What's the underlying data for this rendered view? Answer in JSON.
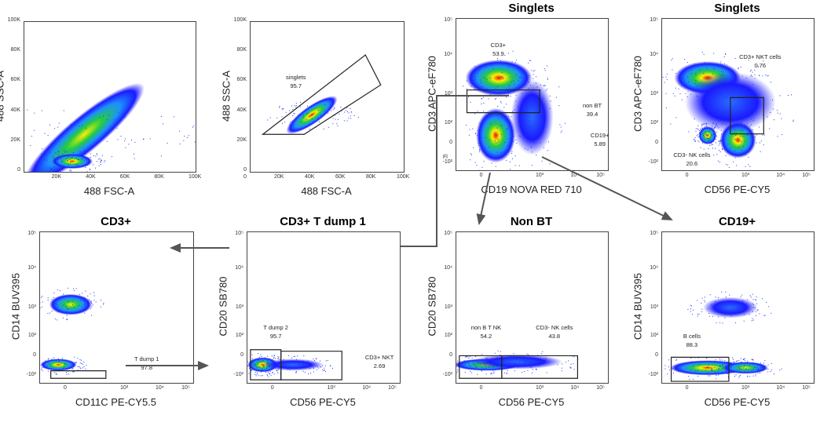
{
  "chart_data": [
    {
      "type": "scatter",
      "title": "",
      "xlabel": "488 FSC-A",
      "ylabel": "488 SSC-A",
      "xscale": "linear",
      "yscale": "linear",
      "xticks": [
        "20K",
        "40K",
        "60K",
        "80K",
        "100K"
      ],
      "yticks": [
        "0",
        "20K",
        "40K",
        "60K",
        "80K",
        "100K"
      ],
      "gates": []
    },
    {
      "type": "scatter",
      "title": "",
      "xlabel": "488 FSC-A",
      "ylabel": "488 SSC-A",
      "xscale": "linear",
      "yscale": "linear",
      "xticks": [
        "0",
        "20K",
        "40K",
        "60K",
        "80K",
        "100K"
      ],
      "yticks": [
        "0",
        "20K",
        "40K",
        "60K",
        "80K",
        "100K"
      ],
      "gates": [
        {
          "name": "singlets",
          "value": "95.7"
        }
      ]
    },
    {
      "type": "scatter",
      "title": "Singlets",
      "xlabel": "CD19 NOVA RED 710",
      "ylabel": "CD3 APC-eF780",
      "xscale": "biexponential",
      "yscale": "biexponential",
      "xticks": [
        "0",
        "10³",
        "10⁴",
        "10⁵"
      ],
      "yticks": [
        "-10²",
        "0",
        "10²",
        "10³",
        "10⁴",
        "10⁵"
      ],
      "gates": [
        {
          "name": "CD3+",
          "value": "53.9"
        },
        {
          "name": "non BT",
          "value": "39.4"
        },
        {
          "name": "CD19+",
          "value": "5.89"
        }
      ],
      "side_note": "Fl"
    },
    {
      "type": "scatter",
      "title": "Singlets",
      "xlabel": "CD56 PE-CY5",
      "ylabel": "CD3 APC-eF780",
      "xscale": "biexponential",
      "yscale": "biexponential",
      "xticks": [
        "0",
        "10³",
        "10⁴",
        "10⁵"
      ],
      "yticks": [
        "-10²",
        "0",
        "10²",
        "10³",
        "10⁴",
        "10⁵"
      ],
      "gates": [
        {
          "name": "CD3+ NKT cells",
          "value": "0.76"
        },
        {
          "name": "CD3- NK cells",
          "value": "20.6"
        }
      ]
    },
    {
      "type": "scatter",
      "title": "CD3+",
      "xlabel": "CD11C PE-CY5.5",
      "ylabel": "CD14 BUV395",
      "xscale": "biexponential",
      "yscale": "biexponential",
      "xticks": [
        "0",
        "10³",
        "10⁴",
        "10⁵"
      ],
      "yticks": [
        "-10²",
        "0",
        "10²",
        "10³",
        "10⁴",
        "10⁵"
      ],
      "gates": [
        {
          "name": "T dump 1",
          "value": "97.8"
        }
      ]
    },
    {
      "type": "scatter",
      "title": "CD3+ T dump 1",
      "xlabel": "CD56 PE-CY5",
      "ylabel": "CD20 SB780",
      "xscale": "biexponential",
      "yscale": "biexponential",
      "xticks": [
        "0",
        "10³",
        "10⁴",
        "10⁵"
      ],
      "yticks": [
        "-10²",
        "0",
        "10²",
        "10³",
        "10⁴",
        "10⁵"
      ],
      "gates": [
        {
          "name": "T dump 2",
          "value": "95.7"
        },
        {
          "name": "CD3+ NKT",
          "value": "2.69"
        }
      ]
    },
    {
      "type": "scatter",
      "title": "Non BT",
      "xlabel": "CD56 PE-CY5",
      "ylabel": "CD20 SB780",
      "xscale": "biexponential",
      "yscale": "biexponential",
      "xticks": [
        "0",
        "10³",
        "10⁴",
        "10⁵"
      ],
      "yticks": [
        "-10²",
        "0",
        "10²",
        "10³",
        "10⁴",
        "10⁵"
      ],
      "gates": [
        {
          "name": "non B T NK",
          "value": "54.2"
        },
        {
          "name": "CD3- NK cells",
          "value": "43.8"
        }
      ]
    },
    {
      "type": "scatter",
      "title": "CD19+",
      "xlabel": "CD56 PE-CY5",
      "ylabel": "CD14 BUV395",
      "xscale": "biexponential",
      "yscale": "biexponential",
      "xticks": [
        "0",
        "10³",
        "10⁴",
        "10⁵"
      ],
      "yticks": [
        "-10²",
        "0",
        "10²",
        "10³",
        "10⁴",
        "10⁵"
      ],
      "gates": [
        {
          "name": "B cells",
          "value": "88.3"
        }
      ]
    }
  ],
  "colors": {
    "density_low": "#1a1aff",
    "density_mid": "#22cc44",
    "density_high": "#ffee00",
    "density_peak": "#ee1100",
    "gate": "#222222",
    "arrow": "#555555"
  }
}
